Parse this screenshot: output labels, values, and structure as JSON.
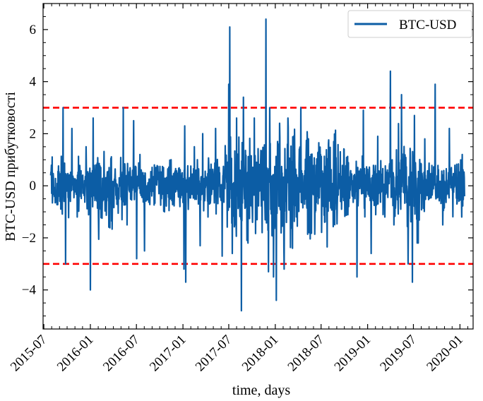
{
  "chart_data": {
    "type": "line",
    "title": "",
    "xlabel": "time, days",
    "ylabel": "BTC-USD прибутковості",
    "x_start": "2015-07-28",
    "x_end": "2020-01-20",
    "xlim": [
      "2015-06-28",
      "2020-02-22"
    ],
    "ylim": [
      -5.5,
      7.0
    ],
    "x_ticks": [
      "2015-07",
      "2016-01",
      "2016-07",
      "2017-01",
      "2017-07",
      "2018-01",
      "2018-07",
      "2019-01",
      "2019-07",
      "2020-01"
    ],
    "y_ticks": [
      -4,
      -2,
      0,
      2,
      4,
      6
    ],
    "y_tick_labels": [
      "−4",
      "−2",
      "0",
      "2",
      "4",
      "6"
    ],
    "legend": {
      "position": "top-right",
      "entries": [
        "BTC-USD"
      ]
    },
    "grid": false,
    "series": [
      {
        "name": "BTC-USD",
        "color": "#0c5da5",
        "points": [
          [
            "2015-07-28",
            0.4
          ],
          [
            "2015-08-18",
            -0.6
          ],
          [
            "2015-09-15",
            3.0
          ],
          [
            "2015-09-25",
            -3.0
          ],
          [
            "2015-10-20",
            2.2
          ],
          [
            "2015-11-10",
            -1.2
          ],
          [
            "2015-12-15",
            1.5
          ],
          [
            "2016-01-01",
            -4.0
          ],
          [
            "2016-01-12",
            2.6
          ],
          [
            "2016-02-10",
            -0.9
          ],
          [
            "2016-03-15",
            0.7
          ],
          [
            "2016-05-05",
            -1.3
          ],
          [
            "2016-05-10",
            3.0
          ],
          [
            "2016-05-25",
            -1.5
          ],
          [
            "2016-06-20",
            2.5
          ],
          [
            "2016-07-02",
            -2.8
          ],
          [
            "2016-07-15",
            1.2
          ],
          [
            "2016-08-02",
            -2.5
          ],
          [
            "2016-09-10",
            0.8
          ],
          [
            "2016-10-20",
            -1.0
          ],
          [
            "2016-11-15",
            1.0
          ],
          [
            "2016-12-20",
            -0.8
          ],
          [
            "2017-01-05",
            -3.2
          ],
          [
            "2017-01-08",
            2.3
          ],
          [
            "2017-01-12",
            -3.7
          ],
          [
            "2017-02-15",
            1.5
          ],
          [
            "2017-03-10",
            -2.3
          ],
          [
            "2017-03-20",
            2.0
          ],
          [
            "2017-04-10",
            -1.2
          ],
          [
            "2017-05-10",
            2.2
          ],
          [
            "2017-06-05",
            -2.7
          ],
          [
            "2017-07-01",
            3.9
          ],
          [
            "2017-07-05",
            6.1
          ],
          [
            "2017-07-15",
            -2.6
          ],
          [
            "2017-08-01",
            2.6
          ],
          [
            "2017-08-20",
            -4.8
          ],
          [
            "2017-08-28",
            3.4
          ],
          [
            "2017-09-15",
            -2.2
          ],
          [
            "2017-10-10",
            2.6
          ],
          [
            "2017-11-10",
            -1.8
          ],
          [
            "2017-11-25",
            6.4
          ],
          [
            "2017-12-05",
            -3.3
          ],
          [
            "2017-12-10",
            3.0
          ],
          [
            "2017-12-25",
            -3.5
          ],
          [
            "2018-01-05",
            -4.4
          ],
          [
            "2018-01-18",
            2.4
          ],
          [
            "2018-02-05",
            -3.2
          ],
          [
            "2018-02-20",
            2.6
          ],
          [
            "2018-03-10",
            -2.4
          ],
          [
            "2018-04-12",
            3.0
          ],
          [
            "2018-05-15",
            -1.8
          ],
          [
            "2018-06-20",
            1.3
          ],
          [
            "2018-07-15",
            -1.4
          ],
          [
            "2018-08-20",
            1.7
          ],
          [
            "2018-09-20",
            -0.9
          ],
          [
            "2018-10-25",
            0.5
          ],
          [
            "2018-11-20",
            -3.5
          ],
          [
            "2018-12-15",
            2.9
          ],
          [
            "2019-01-15",
            -2.6
          ],
          [
            "2019-02-10",
            1.9
          ],
          [
            "2019-03-10",
            -1.2
          ],
          [
            "2019-04-01",
            4.4
          ],
          [
            "2019-04-15",
            -1.5
          ],
          [
            "2019-05-15",
            3.5
          ],
          [
            "2019-06-10",
            -3.0
          ],
          [
            "2019-06-27",
            -3.7
          ],
          [
            "2019-07-05",
            2.7
          ],
          [
            "2019-07-20",
            -2.2
          ],
          [
            "2019-08-15",
            1.8
          ],
          [
            "2019-09-25",
            3.9
          ],
          [
            "2019-10-25",
            -1.5
          ],
          [
            "2019-11-20",
            2.2
          ],
          [
            "2019-12-20",
            -0.7
          ],
          [
            "2020-01-10",
            1.2
          ],
          [
            "2020-01-20",
            -0.4
          ]
        ]
      }
    ],
    "reference_lines": [
      {
        "y": 3,
        "color": "#ff0000",
        "style": "dashed"
      },
      {
        "y": -3,
        "color": "#ff0000",
        "style": "dashed"
      }
    ]
  }
}
